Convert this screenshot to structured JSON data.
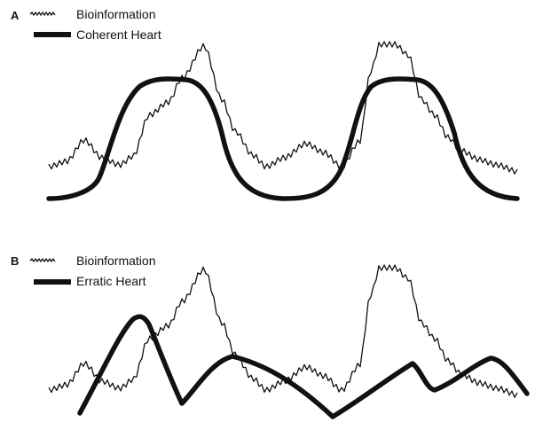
{
  "panels": [
    {
      "id": "A",
      "letter": "A",
      "legend": [
        {
          "label": "Bioinformation",
          "icon": "wavy-line-icon"
        },
        {
          "label": "Coherent Heart",
          "icon": "thick-line-icon"
        }
      ],
      "curves": {
        "bioinformation": "jagged oscillating signal with two major peaks",
        "heart": "smooth sinusoidal waveform with two broad peaks"
      }
    },
    {
      "id": "B",
      "letter": "B",
      "legend": [
        {
          "label": "Bioinformation",
          "icon": "wavy-line-icon"
        },
        {
          "label": "Erratic Heart",
          "icon": "thick-line-icon"
        }
      ],
      "curves": {
        "bioinformation": "jagged oscillating signal with two major peaks",
        "heart": "irregular erratic waveform"
      }
    }
  ],
  "colors": {
    "line": "#111111",
    "background": "#ffffff"
  }
}
